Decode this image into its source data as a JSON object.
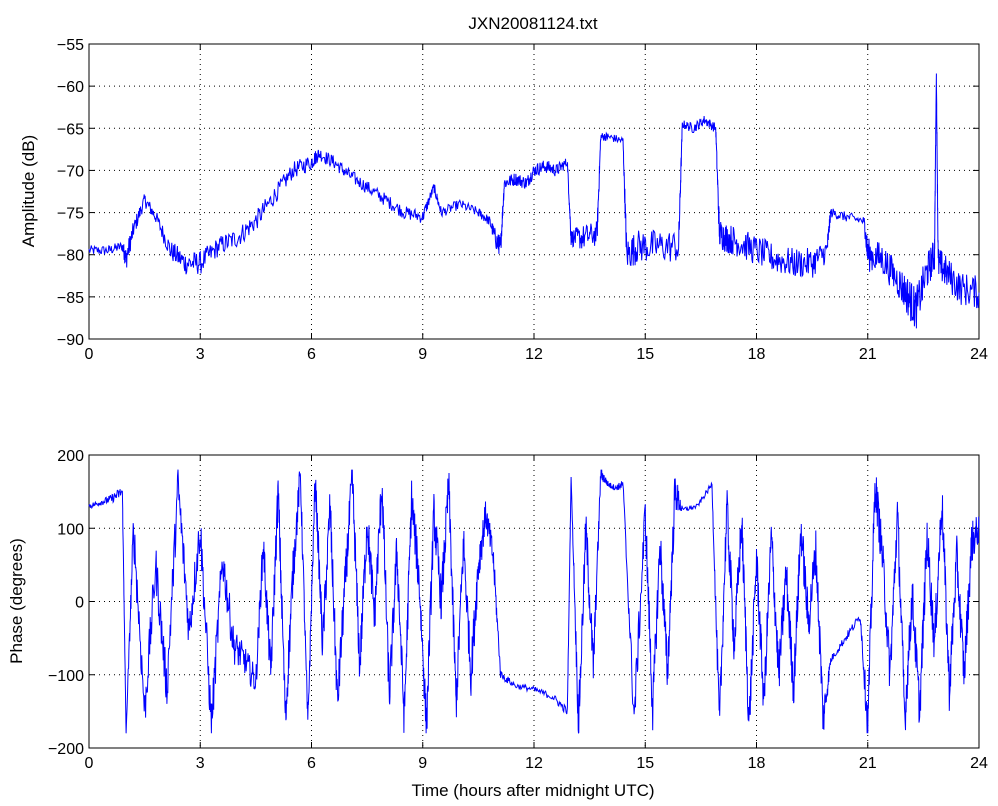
{
  "title": "JXN20081124.txt",
  "chart_data": [
    {
      "type": "line",
      "name": "amplitude-plot",
      "title": "JXN20081124.txt",
      "xlabel": "",
      "ylabel": "Amplitude (dB)",
      "xlim": [
        0,
        24
      ],
      "ylim": [
        -90,
        -55
      ],
      "xticks": [
        "0",
        "3",
        "6",
        "9",
        "12",
        "15",
        "18",
        "21",
        "24"
      ],
      "yticks": [
        "−55",
        "−60",
        "−65",
        "−70",
        "−75",
        "−80",
        "−85",
        "−90"
      ],
      "grid": true,
      "line_color": "#0000ff",
      "x": [
        0,
        0.5,
        0.9,
        1.0,
        1.2,
        1.5,
        1.8,
        2.2,
        2.6,
        3.0,
        3.5,
        4.0,
        4.5,
        5.0,
        5.5,
        6.0,
        6.2,
        6.6,
        7.0,
        7.5,
        8.0,
        8.5,
        9.0,
        9.3,
        9.5,
        10.0,
        10.5,
        10.8,
        11.0,
        11.1,
        11.2,
        11.5,
        11.8,
        12.0,
        12.3,
        12.6,
        12.9,
        13.0,
        13.3,
        13.7,
        13.8,
        14.0,
        14.4,
        14.5,
        14.8,
        15.3,
        15.9,
        16.0,
        16.3,
        16.6,
        16.9,
        17.0,
        17.2,
        17.5,
        18.0,
        18.5,
        19.0,
        19.5,
        19.9,
        20.0,
        20.4,
        20.9,
        21.0,
        21.4,
        21.8,
        22.1,
        22.3,
        22.6,
        22.8,
        22.85,
        22.9,
        23.1,
        23.5,
        24.0
      ],
      "y": [
        -79.5,
        -79.5,
        -79.0,
        -80.5,
        -77.0,
        -73.5,
        -75.5,
        -79.5,
        -81.0,
        -81.0,
        -79.0,
        -78.0,
        -76.0,
        -73.0,
        -70.0,
        -69.0,
        -68.0,
        -69.0,
        -70.5,
        -72.0,
        -73.5,
        -75.0,
        -75.5,
        -72.0,
        -75.0,
        -74.0,
        -75.0,
        -76.0,
        -78.5,
        -79.0,
        -71.5,
        -71.0,
        -71.5,
        -70.0,
        -69.5,
        -70.0,
        -69.0,
        -78.0,
        -78.0,
        -77.5,
        -66.0,
        -66.0,
        -66.5,
        -80.0,
        -79.0,
        -79.0,
        -79.0,
        -64.5,
        -65.0,
        -64.0,
        -65.0,
        -77.5,
        -78.0,
        -78.5,
        -79.5,
        -80.5,
        -81.0,
        -81.0,
        -79.5,
        -75.0,
        -75.5,
        -76.0,
        -80.0,
        -80.5,
        -83.0,
        -85.0,
        -86.5,
        -82.0,
        -80.0,
        -58.5,
        -81.0,
        -82.0,
        -84.0,
        -84.5
      ],
      "noise": [
        0.6,
        0.6,
        0.6,
        1.4,
        1.0,
        0.8,
        0.8,
        1.2,
        1.4,
        1.4,
        1.2,
        1.2,
        1.2,
        1.1,
        1.0,
        1.0,
        0.8,
        0.8,
        0.8,
        0.8,
        0.8,
        0.8,
        0.8,
        0.6,
        0.6,
        0.6,
        0.6,
        0.6,
        1.2,
        1.2,
        0.8,
        0.8,
        0.8,
        0.8,
        0.8,
        0.8,
        0.6,
        1.0,
        1.5,
        1.5,
        0.5,
        0.5,
        0.5,
        2.0,
        2.0,
        2.0,
        2.0,
        0.5,
        0.6,
        0.6,
        0.6,
        1.8,
        1.8,
        1.8,
        1.8,
        1.8,
        1.8,
        1.8,
        1.4,
        0.6,
        0.6,
        0.6,
        2.0,
        2.0,
        2.0,
        2.5,
        2.5,
        2.2,
        2.0,
        0,
        2.0,
        2.0,
        2.0,
        2.0
      ]
    },
    {
      "type": "line",
      "name": "phase-plot",
      "title": "",
      "xlabel": "Time (hours after midnight UTC)",
      "ylabel": "Phase (degrees)",
      "xlim": [
        0,
        24
      ],
      "ylim": [
        -200,
        200
      ],
      "xticks": [
        "0",
        "3",
        "6",
        "9",
        "12",
        "15",
        "18",
        "21",
        "24"
      ],
      "yticks": [
        "200",
        "100",
        "0",
        "−100",
        "−200"
      ],
      "grid": true,
      "line_color": "#0000ff",
      "x": [
        0,
        0.3,
        0.6,
        0.9,
        1.0,
        1.2,
        1.5,
        1.8,
        2.1,
        2.4,
        2.7,
        3.0,
        3.3,
        3.6,
        3.9,
        4.2,
        4.5,
        4.7,
        4.9,
        5.1,
        5.3,
        5.5,
        5.7,
        5.9,
        6.1,
        6.3,
        6.5,
        6.7,
        6.9,
        7.1,
        7.3,
        7.5,
        7.7,
        7.9,
        8.1,
        8.3,
        8.5,
        8.7,
        8.9,
        9.1,
        9.3,
        9.5,
        9.7,
        9.9,
        10.1,
        10.3,
        10.5,
        10.7,
        10.9,
        11.1,
        11.5,
        12.0,
        12.5,
        12.9,
        13.0,
        13.2,
        13.4,
        13.6,
        13.8,
        14.0,
        14.2,
        14.4,
        14.7,
        15.0,
        15.2,
        15.4,
        15.6,
        15.8,
        16.0,
        16.4,
        16.8,
        17.0,
        17.2,
        17.4,
        17.6,
        17.8,
        18.0,
        18.2,
        18.4,
        18.6,
        18.8,
        19.0,
        19.2,
        19.4,
        19.6,
        19.8,
        20.0,
        20.4,
        20.8,
        21.0,
        21.2,
        21.4,
        21.6,
        21.8,
        22.0,
        22.2,
        22.4,
        22.6,
        22.8,
        23.0,
        23.2,
        23.4,
        23.6,
        23.8,
        24.0
      ],
      "y": [
        130,
        135,
        140,
        150,
        -180,
        100,
        -150,
        50,
        -120,
        160,
        -40,
        100,
        -170,
        60,
        -60,
        -80,
        -110,
        80,
        -100,
        150,
        -160,
        40,
        175,
        -170,
        170,
        -60,
        130,
        -140,
        20,
        170,
        -90,
        110,
        -20,
        160,
        -130,
        70,
        -160,
        140,
        30,
        -170,
        120,
        0,
        160,
        -140,
        80,
        -100,
        50,
        120,
        60,
        -100,
        -115,
        -120,
        -130,
        -150,
        170,
        -170,
        100,
        -90,
        175,
        160,
        155,
        160,
        -160,
        120,
        -150,
        80,
        -100,
        150,
        125,
        130,
        160,
        -170,
        130,
        -60,
        110,
        -170,
        60,
        -140,
        90,
        -100,
        40,
        -120,
        100,
        -30,
        70,
        -160,
        -80,
        -50,
        -20,
        -170,
        160,
        60,
        -100,
        120,
        -160,
        10,
        -150,
        90,
        -60,
        140,
        -120,
        60,
        -100,
        80,
        100
      ],
      "noise": [
        4,
        4,
        6,
        8,
        0,
        30,
        30,
        30,
        30,
        30,
        30,
        30,
        30,
        30,
        25,
        20,
        20,
        25,
        30,
        30,
        30,
        30,
        20,
        20,
        20,
        30,
        30,
        30,
        30,
        30,
        30,
        30,
        30,
        30,
        30,
        30,
        30,
        30,
        30,
        30,
        30,
        30,
        30,
        30,
        30,
        30,
        30,
        20,
        20,
        6,
        4,
        4,
        5,
        6,
        0,
        30,
        30,
        30,
        10,
        4,
        4,
        6,
        30,
        30,
        30,
        30,
        30,
        30,
        4,
        3,
        4,
        30,
        30,
        30,
        30,
        30,
        30,
        30,
        30,
        30,
        30,
        30,
        30,
        30,
        30,
        30,
        5,
        6,
        6,
        30,
        30,
        30,
        30,
        30,
        30,
        30,
        30,
        30,
        30,
        30,
        30,
        30,
        30,
        30,
        20
      ],
      "wrap": true
    }
  ]
}
